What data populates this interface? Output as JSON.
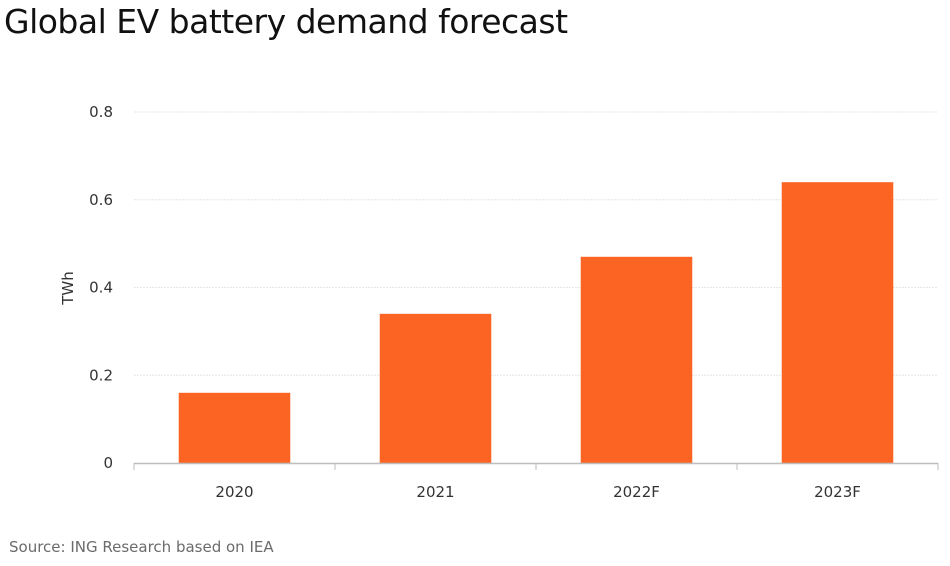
{
  "title": "Global EV battery demand forecast",
  "source": "Source: ING Research based on IEA",
  "colors": {
    "bar": "#fc6423",
    "grid": "#e6e6e6",
    "axis": "#bdbdbd"
  },
  "chart_data": {
    "type": "bar",
    "title": "Global EV battery demand forecast",
    "xlabel": "",
    "ylabel": "TWh",
    "categories": [
      "2020",
      "2021",
      "2022F",
      "2023F"
    ],
    "values": [
      0.16,
      0.34,
      0.47,
      0.64
    ],
    "ylim": [
      0,
      0.8
    ],
    "yticks": [
      0,
      0.2,
      0.4,
      0.6,
      0.8
    ],
    "ytick_labels": [
      "0",
      "0.2",
      "0.4",
      "0.6",
      "0.8"
    ],
    "grid": true,
    "legend": "none"
  }
}
